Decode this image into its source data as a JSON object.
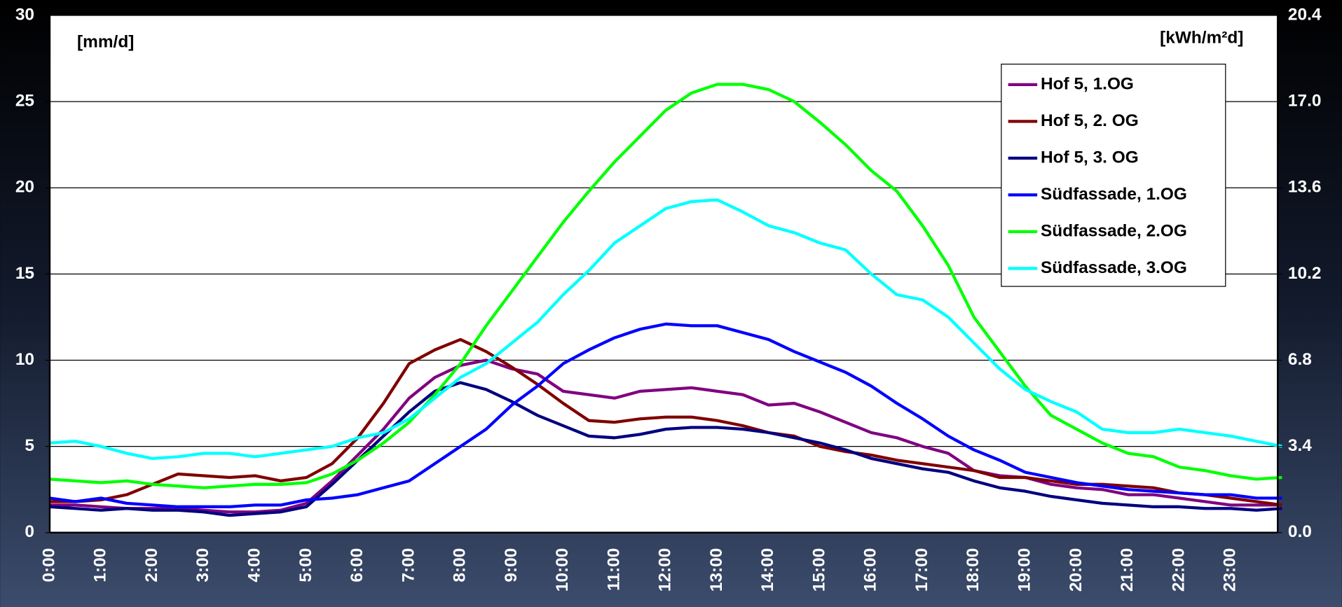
{
  "chart_data": {
    "type": "line",
    "ylabel": "[mm/d]",
    "y2label": "[kWh/m²d]",
    "categories": [
      "0:00",
      null,
      "1:00",
      null,
      "2:00",
      null,
      "3:00",
      null,
      "4:00",
      null,
      "5:00",
      null,
      "6:00",
      null,
      "7:00",
      null,
      "8:00",
      null,
      "9:00",
      null,
      "10:00",
      null,
      "11:00",
      null,
      "12:00",
      null,
      "13:00",
      null,
      "14:00",
      null,
      "15:00",
      null,
      "16:00",
      null,
      "17:00",
      null,
      "18:00",
      null,
      "19:00",
      null,
      "20:00",
      null,
      "21:00",
      null,
      "22:00",
      null,
      "23:00",
      null,
      null
    ],
    "series": [
      {
        "name": "Hof 5, 1.OG",
        "color": "#800080",
        "values": [
          1.6,
          1.6,
          1.5,
          1.4,
          1.4,
          1.4,
          1.3,
          1.2,
          1.2,
          1.3,
          1.7,
          3.0,
          4.5,
          6.0,
          7.8,
          9.0,
          9.7,
          10.0,
          9.5,
          9.2,
          8.2,
          8.0,
          7.8,
          8.2,
          8.3,
          8.4,
          8.2,
          8.0,
          7.4,
          7.5,
          7.0,
          6.4,
          5.8,
          5.5,
          5.0,
          4.6,
          3.6,
          3.3,
          3.2,
          2.8,
          2.6,
          2.5,
          2.2,
          2.2,
          2.0,
          1.8,
          1.6,
          1.6,
          1.6
        ]
      },
      {
        "name": "Hof 5, 2. OG",
        "color": "#800000",
        "values": [
          1.8,
          1.8,
          1.9,
          2.2,
          2.8,
          3.4,
          3.3,
          3.2,
          3.3,
          3.0,
          3.2,
          4.0,
          5.5,
          7.5,
          9.8,
          10.6,
          11.2,
          10.5,
          9.6,
          8.6,
          7.5,
          6.5,
          6.4,
          6.6,
          6.7,
          6.7,
          6.5,
          6.2,
          5.8,
          5.6,
          5.0,
          4.7,
          4.5,
          4.2,
          4.0,
          3.8,
          3.6,
          3.2,
          3.2,
          3.0,
          2.8,
          2.8,
          2.7,
          2.6,
          2.3,
          2.2,
          2.0,
          1.8,
          1.6
        ]
      },
      {
        "name": "Hof 5, 3. OG",
        "color": "#000080",
        "values": [
          1.5,
          1.4,
          1.3,
          1.4,
          1.3,
          1.3,
          1.2,
          1.0,
          1.1,
          1.2,
          1.5,
          2.8,
          4.2,
          5.6,
          7.0,
          8.2,
          8.7,
          8.3,
          7.6,
          6.8,
          6.2,
          5.6,
          5.5,
          5.7,
          6.0,
          6.1,
          6.1,
          6.0,
          5.8,
          5.5,
          5.2,
          4.8,
          4.3,
          4.0,
          3.7,
          3.5,
          3.0,
          2.6,
          2.4,
          2.1,
          1.9,
          1.7,
          1.6,
          1.5,
          1.5,
          1.4,
          1.4,
          1.3,
          1.4
        ]
      },
      {
        "name": "Südfassade, 1.OG",
        "color": "#0000ff",
        "values": [
          2.0,
          1.8,
          2.0,
          1.7,
          1.6,
          1.5,
          1.5,
          1.5,
          1.6,
          1.6,
          1.9,
          2.0,
          2.2,
          2.6,
          3.0,
          4.0,
          5.0,
          6.0,
          7.4,
          8.5,
          9.8,
          10.6,
          11.3,
          11.8,
          12.1,
          12.0,
          12.0,
          11.6,
          11.2,
          10.5,
          9.9,
          9.3,
          8.5,
          7.5,
          6.6,
          5.6,
          4.8,
          4.2,
          3.5,
          3.2,
          2.9,
          2.7,
          2.5,
          2.4,
          2.3,
          2.2,
          2.2,
          2.0,
          2.0
        ]
      },
      {
        "name": "Südfassade, 2.OG",
        "color": "#00ff00",
        "values": [
          3.1,
          3.0,
          2.9,
          3.0,
          2.8,
          2.7,
          2.6,
          2.7,
          2.8,
          2.8,
          2.9,
          3.4,
          4.2,
          5.2,
          6.4,
          8.0,
          9.8,
          12.0,
          14.0,
          16.0,
          18.0,
          19.8,
          21.5,
          23.0,
          24.5,
          25.5,
          26.0,
          26.0,
          25.7,
          25.0,
          23.8,
          22.5,
          21.0,
          19.8,
          17.8,
          15.5,
          12.5,
          10.5,
          8.5,
          6.8,
          6.0,
          5.2,
          4.6,
          4.4,
          3.8,
          3.6,
          3.3,
          3.1,
          3.2
        ]
      },
      {
        "name": "Südfassade, 3.OG",
        "color": "#00ffff",
        "values": [
          5.2,
          5.3,
          5.0,
          4.6,
          4.3,
          4.4,
          4.6,
          4.6,
          4.4,
          4.6,
          4.8,
          5.0,
          5.5,
          5.8,
          6.6,
          7.8,
          9.0,
          9.8,
          11.0,
          12.2,
          13.8,
          15.2,
          16.8,
          17.8,
          18.8,
          19.2,
          19.3,
          18.6,
          17.8,
          17.4,
          16.8,
          16.4,
          15.0,
          13.8,
          13.5,
          12.5,
          11.0,
          9.5,
          8.3,
          7.6,
          7.0,
          6.0,
          5.8,
          5.8,
          6.0,
          5.8,
          5.6,
          5.3,
          5.0
        ]
      }
    ],
    "ylim": [
      0,
      30
    ],
    "yticks": [
      0,
      5,
      10,
      15,
      20,
      25,
      30
    ],
    "y2lim": [
      0,
      20.4
    ],
    "y2ticks": [
      {
        "value": 0,
        "label": "0.0"
      },
      3.4,
      6.8,
      10.2,
      13.6,
      {
        "value": 17,
        "label": "17.0"
      },
      20.4
    ],
    "grid": true,
    "legend": "top-right"
  }
}
